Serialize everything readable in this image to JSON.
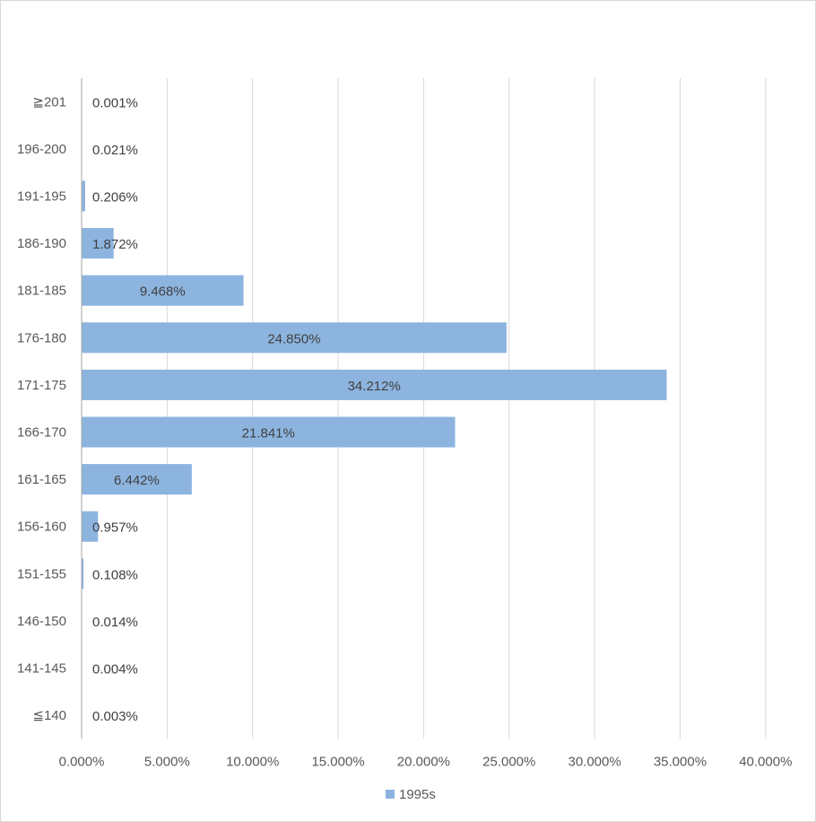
{
  "chart_data": {
    "type": "bar",
    "orientation": "horizontal",
    "categories": [
      "≦140",
      "141-145",
      "146-150",
      "151-155",
      "156-160",
      "161-165",
      "166-170",
      "171-175",
      "176-180",
      "181-185",
      "186-190",
      "191-195",
      "196-200",
      "≧201"
    ],
    "series": [
      {
        "name": "1995s",
        "values": [
          0.003,
          0.004,
          0.014,
          0.108,
          0.957,
          6.442,
          21.841,
          34.212,
          24.85,
          9.468,
          1.872,
          0.206,
          0.021,
          0.001
        ]
      }
    ],
    "data_labels": [
      "0.003%",
      "0.004%",
      "0.014%",
      "0.108%",
      "0.957%",
      "6.442%",
      "21.841%",
      "34.212%",
      "24.850%",
      "9.468%",
      "1.872%",
      "0.206%",
      "0.021%",
      "0.001%"
    ],
    "x_ticks": [
      "0.000%",
      "5.000%",
      "10.000%",
      "15.000%",
      "20.000%",
      "25.000%",
      "30.000%",
      "35.000%",
      "40.000%"
    ],
    "xlim": [
      0,
      40
    ],
    "grid": "vertical",
    "legend_position": "bottom",
    "colors": {
      "bar": "#8cb4df",
      "grid": "#d9d9d9",
      "axis": "#a6a6a6"
    }
  }
}
